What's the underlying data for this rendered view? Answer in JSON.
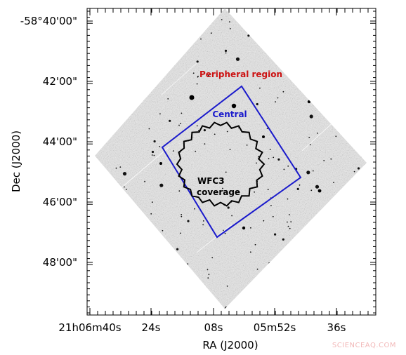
{
  "figure": {
    "y_axis_title": "Dec (J2000)",
    "x_axis_title": "RA (J2000)",
    "y_ticks": [
      "-58°40'00\"",
      "42'00\"",
      "44'00\"",
      "46'00\"",
      "48'00\""
    ],
    "x_ticks": [
      "21h06m40s",
      "24s",
      "08s",
      "05m52s",
      "36s"
    ],
    "annotations": {
      "peripheral": "Peripheral region",
      "central": "Central",
      "wfc3_line1": "WFC3",
      "wfc3_line2": "coverage"
    },
    "colors": {
      "peripheral": "#cc1111",
      "central": "#1a1acc",
      "wfc3": "#000000",
      "sky": "#e6e6e6"
    }
  },
  "watermark": "SCIENCEAQ.COM"
}
